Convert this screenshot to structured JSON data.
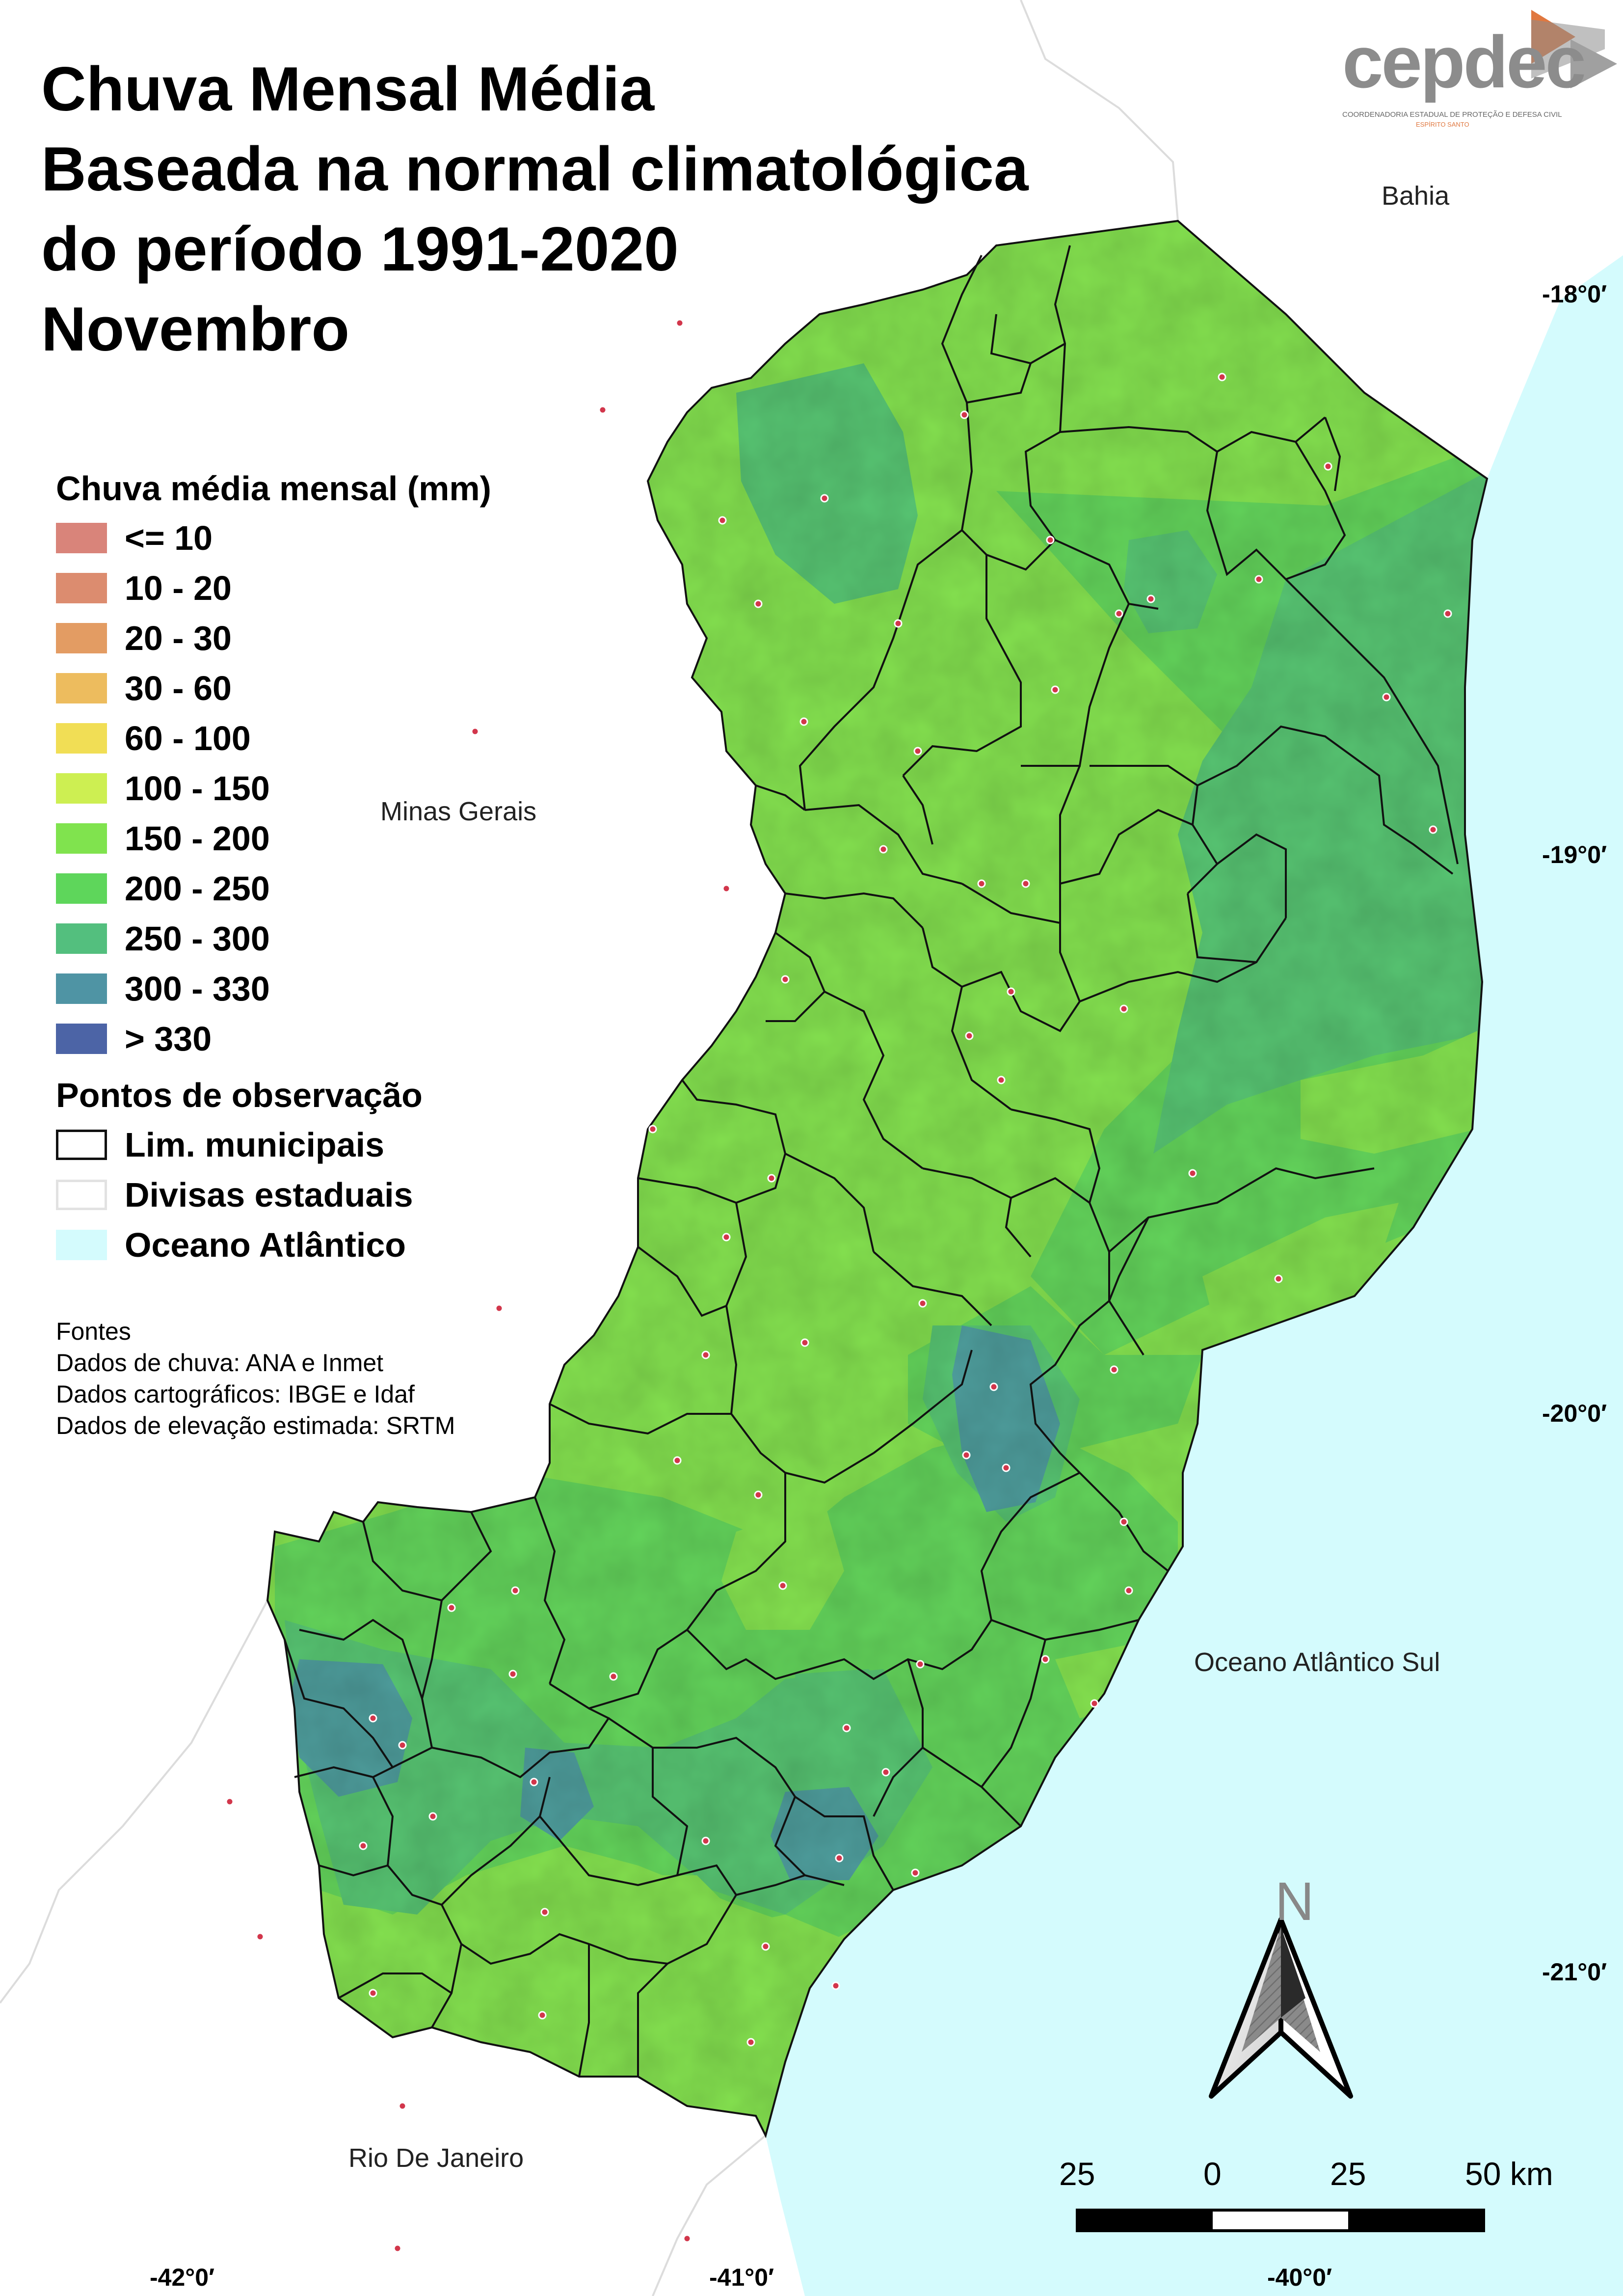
{
  "title": {
    "line1": "Chuva Mensal Média",
    "line2": "Baseada na normal climatológica",
    "line3": "do período 1991-2020",
    "line4": "Novembro"
  },
  "logo": {
    "text": "cepdec",
    "subtitle": "COORDENADORIA ESTADUAL DE PROTEÇÃO E DEFESA CIVIL",
    "subtitle2": "ESPÍRITO SANTO"
  },
  "legend": {
    "heading": "Chuva média mensal (mm)",
    "classes": [
      {
        "label": "<= 10",
        "color": "#d9847a"
      },
      {
        "label": "10 - 20",
        "color": "#dc8c6f"
      },
      {
        "label": "20 - 30",
        "color": "#e39c63"
      },
      {
        "label": "30 - 60",
        "color": "#edbc5e"
      },
      {
        "label": "60 - 100",
        "color": "#f1de55"
      },
      {
        "label": "100 - 150",
        "color": "#cdef52"
      },
      {
        "label": "150 - 200",
        "color": "#80e34e"
      },
      {
        "label": "200 - 250",
        "color": "#5ed65b"
      },
      {
        "label": "250 - 300",
        "color": "#53bf7e"
      },
      {
        "label": "300 - 330",
        "color": "#4f94a4"
      },
      {
        "label": "> 330",
        "color": "#4c64a6"
      }
    ],
    "obs_heading": "Pontos de observação",
    "layers": [
      {
        "label": "Lim. municipais",
        "style": "black-outline"
      },
      {
        "label": "Divisas estaduais",
        "style": "light-outline"
      },
      {
        "label": "Oceano Atlântico",
        "style": "ocean",
        "color": "#d4fbfd"
      }
    ]
  },
  "sources": {
    "heading": "Fontes",
    "lines": [
      "Dados de chuva: ANA e Inmet",
      "Dados cartográficos: IBGE e Idaf",
      "Dados de elevação estimada: SRTM"
    ]
  },
  "places": {
    "bahia": "Bahia",
    "minas": "Minas Gerais",
    "oceano": "Oceano Atlântico Sul",
    "rio": "Rio De Janeiro"
  },
  "coordinates": {
    "lat_18": "-18°0′",
    "lat_19": "-19°0′",
    "lat_20": "-20°0′",
    "lat_21": "-21°0′",
    "lon_42": "-42°0′",
    "lon_41": "-41°0′",
    "lon_40": "-40°0′"
  },
  "north_arrow": {
    "label": "N"
  },
  "scale_bar": {
    "labels": [
      "25",
      "0",
      "25",
      "50 km"
    ]
  }
}
